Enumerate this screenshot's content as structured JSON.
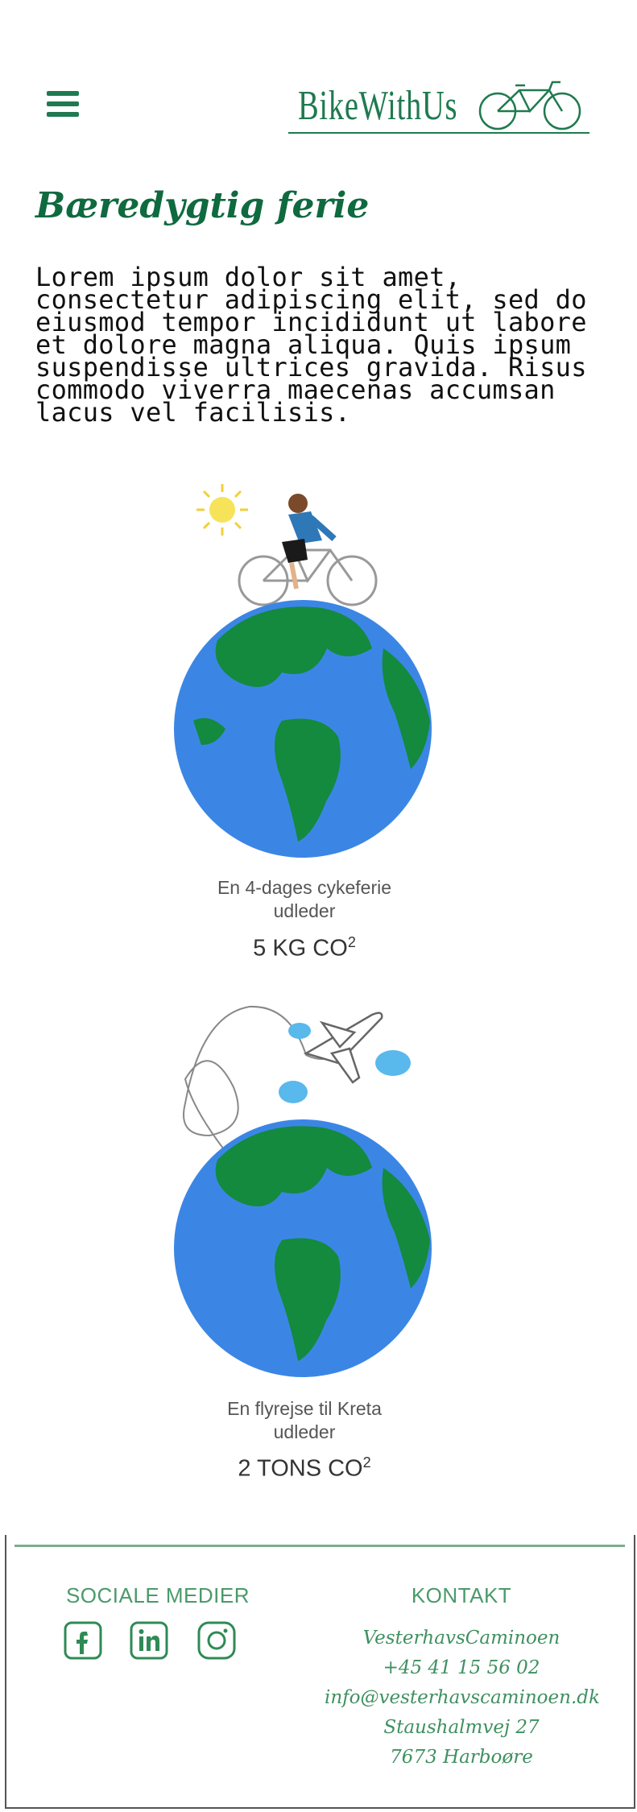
{
  "header": {
    "menu_icon": "hamburger-icon",
    "logo_text": "BikeWithUs",
    "logo_icon": "bicycle-icon",
    "brand_color": "#1f7a4f"
  },
  "main": {
    "title": "Bæredygtig ferie",
    "intro": "Lorem ipsum dolor sit amet, consectetur adipiscing elit, sed do eiusmod tempor incididunt ut labore et dolore magna aliqua. Quis ipsum suspendisse ultrices gravida. Risus commodo viverra maecenas accumsan lacus vel facilisis.",
    "comparisons": [
      {
        "caption_line1": "En 4-dages cykeferie",
        "caption_line2": "udleder",
        "amount": "5 KG CO",
        "sup": "2",
        "illustration": "cyclist-on-globe"
      },
      {
        "caption_line1": "En flyrejse til Kreta",
        "caption_line2": "udleder",
        "amount": "2 TONS CO",
        "sup": "2",
        "illustration": "airplane-over-globe"
      }
    ]
  },
  "footer": {
    "social_title": "SOCIALE MEDIER",
    "social_icons": [
      "facebook-icon",
      "linkedin-icon",
      "instagram-icon"
    ],
    "contact_title": "KONTAKT",
    "contact": {
      "name": "VesterhavsCaminoen",
      "phone": "+45 41 15 56 02",
      "email": "info@vesterhavscaminoen.dk",
      "street": "Staushalmvej 27",
      "city": "7673 Harboøre"
    },
    "accent_color": "#4a9a6a"
  }
}
